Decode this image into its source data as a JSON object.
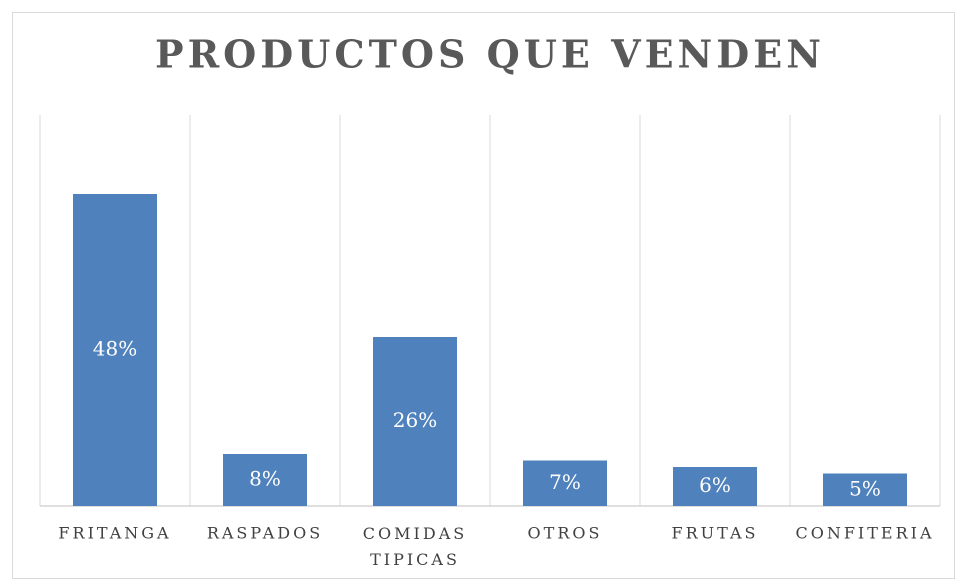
{
  "chart_data": {
    "type": "bar",
    "title": "PRODUCTOS QUE VENDEN",
    "categories": [
      "FRITANGA",
      "RASPADOS",
      "COMIDAS TIPICAS",
      "OTROS",
      "FRUTAS",
      "CONFITERIA"
    ],
    "values": [
      48,
      8,
      26,
      7,
      6,
      5
    ],
    "value_labels": [
      "48%",
      "8%",
      "26%",
      "7%",
      "6%",
      "5%"
    ],
    "color": "#4f81bd"
  }
}
